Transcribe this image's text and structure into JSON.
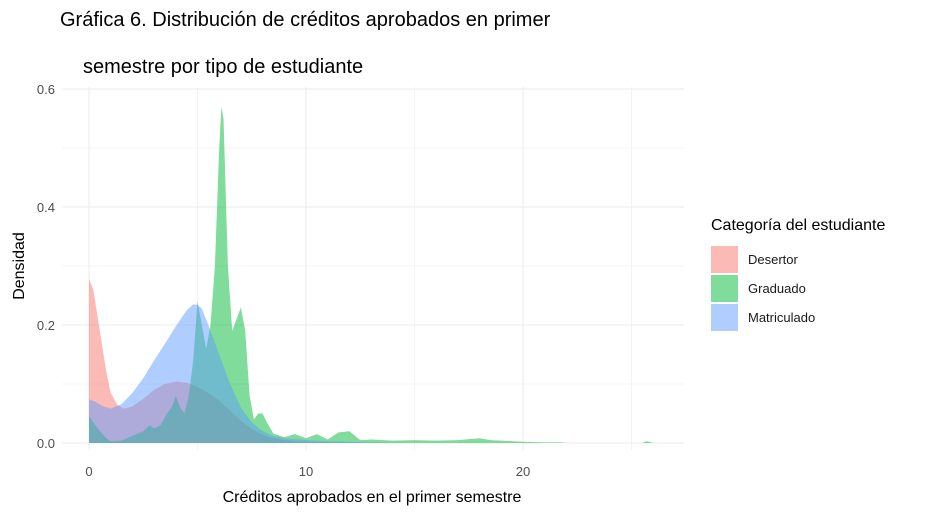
{
  "title_line1": "Gráfica 6. Distribución de créditos aprobados en primer",
  "title_line2": "semestre por tipo de estudiante",
  "chart_data": {
    "type": "area",
    "subtype": "density",
    "xlabel": "Créditos aprobados en el primer semestre",
    "ylabel": "Densidad",
    "xlim": [
      -2,
      27
    ],
    "ylim": [
      0,
      0.6
    ],
    "x_ticks": [
      0,
      10,
      20
    ],
    "y_ticks": [
      0.0,
      0.2,
      0.4,
      0.6
    ],
    "y_tick_labels": [
      "0.0",
      "0.2",
      "0.4",
      "0.6"
    ],
    "grid": true,
    "legend": {
      "title": "Categoría del estudiante",
      "position": "right"
    },
    "series": [
      {
        "name": "Desertor",
        "color": "#F8766D",
        "x": [
          0,
          0.2,
          0.5,
          0.8,
          1.0,
          1.3,
          1.6,
          2.0,
          2.5,
          3.0,
          3.5,
          4.0,
          4.5,
          5.0,
          5.5,
          6.0,
          6.5,
          7.0,
          7.5,
          8.0,
          8.5,
          9.0,
          9.5,
          10.0,
          11.0,
          12.0,
          13.0,
          14.0,
          15.0
        ],
        "y": [
          0.278,
          0.26,
          0.19,
          0.12,
          0.085,
          0.065,
          0.058,
          0.062,
          0.075,
          0.09,
          0.1,
          0.104,
          0.102,
          0.095,
          0.085,
          0.072,
          0.055,
          0.038,
          0.024,
          0.014,
          0.008,
          0.005,
          0.003,
          0.002,
          0.001,
          0.0005,
          0.0002,
          0.0001,
          0
        ]
      },
      {
        "name": "Graduado",
        "color": "#00BA38",
        "x": [
          0,
          0.2,
          0.5,
          0.8,
          1.0,
          1.5,
          2.0,
          2.5,
          2.8,
          3.0,
          3.3,
          3.6,
          3.8,
          4.0,
          4.2,
          4.4,
          4.6,
          4.8,
          5.0,
          5.2,
          5.4,
          5.6,
          5.8,
          6.0,
          6.1,
          6.2,
          6.4,
          6.6,
          6.8,
          7.0,
          7.2,
          7.4,
          7.6,
          7.8,
          8.0,
          8.2,
          8.5,
          9.0,
          9.5,
          10.0,
          10.5,
          11.0,
          11.5,
          12.0,
          12.5,
          13.0,
          14.0,
          15.0,
          16.0,
          17.0,
          18.0,
          18.5,
          19.0,
          20.0,
          21.0,
          21.7,
          22.0,
          25.5,
          25.7,
          26.0
        ],
        "y": [
          0.046,
          0.035,
          0.02,
          0.008,
          0.003,
          0.004,
          0.012,
          0.02,
          0.03,
          0.025,
          0.03,
          0.05,
          0.06,
          0.08,
          0.06,
          0.05,
          0.08,
          0.14,
          0.24,
          0.2,
          0.16,
          0.2,
          0.3,
          0.5,
          0.57,
          0.55,
          0.3,
          0.19,
          0.21,
          0.23,
          0.19,
          0.08,
          0.04,
          0.05,
          0.05,
          0.035,
          0.016,
          0.01,
          0.015,
          0.008,
          0.015,
          0.006,
          0.018,
          0.02,
          0.005,
          0.006,
          0.004,
          0.005,
          0.004,
          0.005,
          0.008,
          0.005,
          0.004,
          0.002,
          0.001,
          0.001,
          0,
          0,
          0.003,
          0
        ]
      },
      {
        "name": "Matriculado",
        "color": "#619CFF",
        "x": [
          0,
          0.3,
          0.6,
          1.0,
          1.5,
          2.0,
          2.5,
          3.0,
          3.5,
          4.0,
          4.5,
          4.8,
          5.0,
          5.2,
          5.5,
          6.0,
          6.5,
          7.0,
          7.5,
          8.0,
          8.5,
          9.0,
          10.0,
          11.0,
          12.0,
          13.0,
          14.0
        ],
        "y": [
          0.074,
          0.07,
          0.063,
          0.058,
          0.066,
          0.085,
          0.11,
          0.14,
          0.168,
          0.198,
          0.225,
          0.235,
          0.234,
          0.228,
          0.2,
          0.15,
          0.1,
          0.06,
          0.035,
          0.02,
          0.012,
          0.008,
          0.005,
          0.003,
          0.002,
          0.001,
          0
        ]
      }
    ]
  }
}
